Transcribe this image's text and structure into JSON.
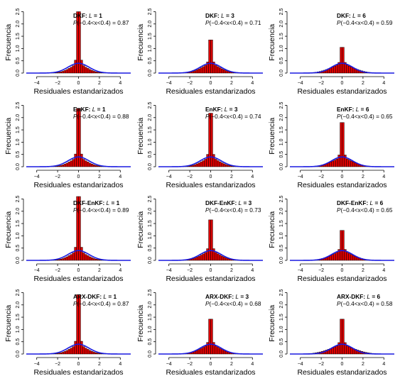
{
  "chart_data": [
    {
      "type": "bar",
      "method": "DKF:",
      "lag": "1",
      "prob": "0.87",
      "peak": 2.5,
      "spread": 0.85,
      "side": 0.1
    },
    {
      "type": "bar",
      "method": "DKF:",
      "lag": "3",
      "prob": "0.71",
      "peak": 1.35,
      "spread": 0.95,
      "side": 0.12
    },
    {
      "type": "bar",
      "method": "DKF:",
      "lag": "6",
      "prob": "0.59",
      "peak": 1.05,
      "spread": 1.2,
      "side": 0.12
    },
    {
      "type": "bar",
      "method": "EnKF:",
      "lag": "1",
      "prob": "0.88",
      "peak": 2.38,
      "spread": 0.85,
      "side": 0.1
    },
    {
      "type": "bar",
      "method": "EnKF:",
      "lag": "3",
      "prob": "0.74",
      "peak": 2.18,
      "spread": 0.9,
      "side": 0.1
    },
    {
      "type": "bar",
      "method": "EnKF:",
      "lag": "6",
      "prob": "0.65",
      "peak": 1.8,
      "spread": 1.1,
      "side": 0.1
    },
    {
      "type": "bar",
      "method": "DKF-EnKF:",
      "lag": "1",
      "prob": "0.89",
      "peak": 2.6,
      "spread": 0.85,
      "side": 0.1
    },
    {
      "type": "bar",
      "method": "DKF-EnKF:",
      "lag": "3",
      "prob": "0.73",
      "peak": 1.65,
      "spread": 0.95,
      "side": 0.12
    },
    {
      "type": "bar",
      "method": "DKF-EnKF:",
      "lag": "6",
      "prob": "0.65",
      "peak": 1.22,
      "spread": 1.1,
      "side": 0.12
    },
    {
      "type": "bar",
      "method": "ARX-DKF:",
      "lag": "1",
      "prob": "0.87",
      "peak": 2.42,
      "spread": 0.85,
      "side": 0.1
    },
    {
      "type": "bar",
      "method": "ARX-DKF:",
      "lag": "3",
      "prob": "0.68",
      "peak": 1.42,
      "spread": 1.0,
      "side": 0.14
    },
    {
      "type": "bar",
      "method": "ARX-DKF:",
      "lag": "6",
      "prob": "0.58",
      "peak": 1.42,
      "spread": 1.3,
      "side": 0.12
    }
  ],
  "shared": {
    "xlabel": "Residuales estandarizados",
    "ylabel": "Frecuencia",
    "xticks": [
      "−4",
      "−2",
      "0",
      "2",
      "4"
    ],
    "yticks": [
      "0.0",
      "0.5",
      "1.0",
      "1.5",
      "2.0",
      "2.5"
    ],
    "lag_label": "L",
    "lag_eq": " = ",
    "prob_prefix": "P",
    "prob_expr": "(−0.4<x<0.4) = ",
    "xlim": [
      -5,
      5
    ],
    "ylim": [
      0,
      2.6
    ],
    "bin_width": 0.2,
    "bar_color": "#dd0000",
    "curve_color": "#1a1ae0",
    "normal_peak": 0.399
  }
}
